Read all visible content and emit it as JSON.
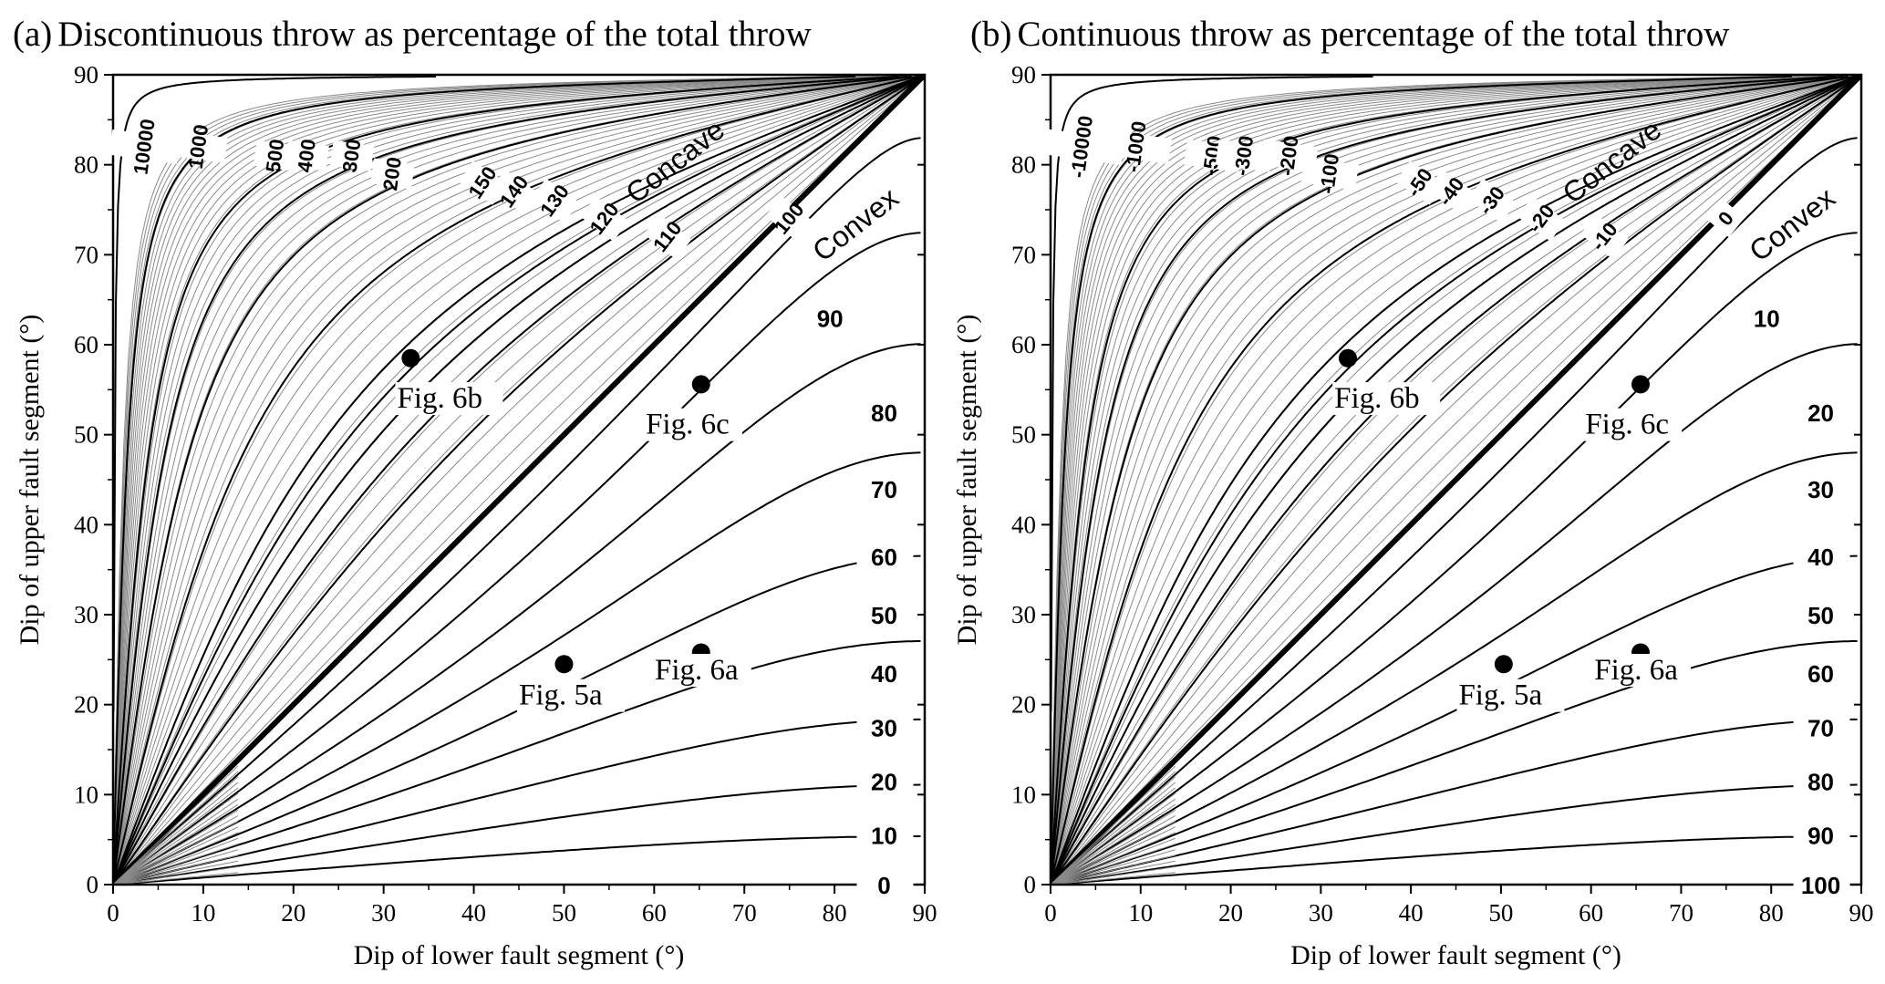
{
  "chart_data": [
    {
      "type": "line",
      "panel": "(a)",
      "title": "Discontinuous throw as percentage of the total throw",
      "xlabel": "Dip of lower fault segment (°)",
      "ylabel": "Dip of upper fault segment (°)",
      "xlim": [
        0,
        90
      ],
      "ylim": [
        0,
        90
      ],
      "xticks": [
        "0",
        "10",
        "20",
        "30",
        "40",
        "50",
        "60",
        "70",
        "80",
        "90"
      ],
      "yticks": [
        "0",
        "10",
        "20",
        "30",
        "40",
        "50",
        "60",
        "70",
        "80",
        "90"
      ],
      "grid": false,
      "contour_quantity": "discontinuous throw (% of total)",
      "contour_labels_upper": [
        "10000",
        "1000",
        "500",
        "400",
        "300",
        "200",
        "150",
        "140",
        "130",
        "120",
        "110",
        "100"
      ],
      "contour_labels_lower": [
        "90",
        "80",
        "70",
        "60",
        "50",
        "40",
        "30",
        "20",
        "10",
        "0"
      ],
      "region_labels": [
        "Concave",
        "Convex"
      ],
      "points": [
        {
          "label": "Fig. 5a",
          "x": 50,
          "y": 24.5
        },
        {
          "label": "Fig. 6a",
          "x": 65.2,
          "y": 25.8
        },
        {
          "label": "Fig. 6b",
          "x": 33,
          "y": 58.5
        },
        {
          "label": "Fig. 6c",
          "x": 65.2,
          "y": 55.6
        }
      ]
    },
    {
      "type": "line",
      "panel": "(b)",
      "title": "Continuous throw as percentage of the total throw",
      "xlabel": "Dip of lower fault segment (°)",
      "ylabel": "Dip of upper fault segment (°)",
      "xlim": [
        0,
        90
      ],
      "ylim": [
        0,
        90
      ],
      "xticks": [
        "0",
        "10",
        "20",
        "30",
        "40",
        "50",
        "60",
        "70",
        "80",
        "90"
      ],
      "yticks": [
        "0",
        "10",
        "20",
        "30",
        "40",
        "50",
        "60",
        "70",
        "80",
        "90"
      ],
      "grid": false,
      "contour_quantity": "continuous throw (% of total)",
      "contour_labels_upper": [
        "-10000",
        "-1000",
        "-500",
        "-300",
        "-200",
        "-100",
        "-50",
        "-40",
        "-30",
        "-20",
        "-10",
        "0"
      ],
      "contour_labels_lower": [
        "10",
        "20",
        "30",
        "40",
        "50",
        "60",
        "70",
        "80",
        "90",
        "100"
      ],
      "region_labels": [
        "Concave",
        "Convex"
      ],
      "points": [
        {
          "label": "Fig. 5a",
          "x": 50.3,
          "y": 24.5
        },
        {
          "label": "Fig. 6a",
          "x": 65.5,
          "y": 25.8
        },
        {
          "label": "Fig. 6b",
          "x": 33,
          "y": 58.5
        },
        {
          "label": "Fig. 6c",
          "x": 65.5,
          "y": 55.6
        }
      ]
    }
  ]
}
